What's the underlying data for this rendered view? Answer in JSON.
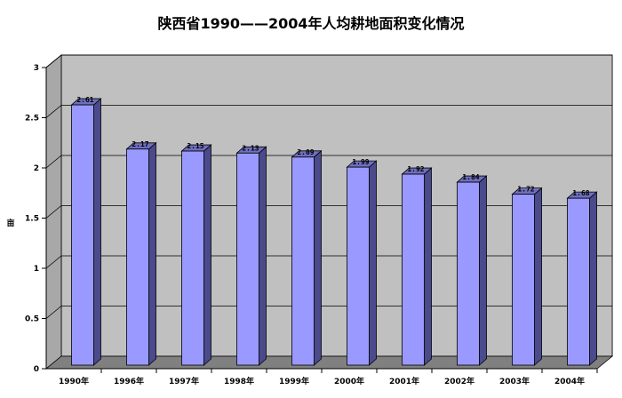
{
  "chart_data": {
    "type": "bar",
    "title": "陕西省1990——2004年人均耕地面积变化情况",
    "ylabel": "亩",
    "xlabel": "",
    "categories": [
      "1990年",
      "1996年",
      "1997年",
      "1998年",
      "1999年",
      "2000年",
      "2001年",
      "2002年",
      "2003年",
      "2004年"
    ],
    "values": [
      2.61,
      2.17,
      2.15,
      2.13,
      2.09,
      1.99,
      1.92,
      1.84,
      1.72,
      1.68
    ],
    "data_labels": [
      "2.61",
      "2.17",
      "2.15",
      "2.13",
      "2.09",
      "1.99",
      "1.92",
      "1.84",
      "1.72",
      "1.68"
    ],
    "yticks": [
      "0",
      "0.5",
      "1",
      "1.5",
      "2",
      "2.5",
      "3"
    ],
    "ylim": [
      0,
      3
    ],
    "grid": true,
    "legend": "none",
    "style": "3d-column",
    "colors": {
      "bar_front": "#9999ff",
      "bar_side": "#4a4a8c",
      "bar_top": "#6f6fc0",
      "wall": "#c0c0c0",
      "floor": "#808080",
      "gridline": "#000000"
    }
  }
}
